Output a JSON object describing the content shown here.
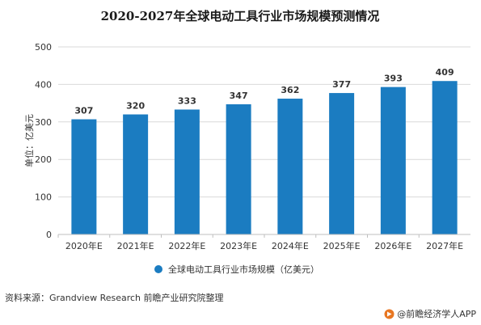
{
  "chart_data": {
    "type": "bar",
    "title": "2020-2027年全球电动工具行业市场规模预测情况",
    "categories": [
      "2020年E",
      "2021年E",
      "2022年E",
      "2023年E",
      "2024年E",
      "2025年E",
      "2026年E",
      "2027年E"
    ],
    "series": [
      {
        "name": "全球电动工具行业市场规模（亿美元）",
        "values": [
          307,
          320,
          333,
          347,
          362,
          377,
          393,
          409
        ]
      }
    ],
    "ylabel": "单位：亿美元",
    "xlabel": "",
    "ylim": [
      0,
      500
    ],
    "yticks": [
      0,
      100,
      200,
      300,
      400,
      500
    ],
    "grid": true,
    "legend_position": "bottom",
    "bar_color": "#1b7cc1",
    "grid_color": "#d9d9d9"
  },
  "footer": {
    "source": "资料来源：Grandview Research 前瞻产业研究院整理",
    "brand": "@前瞻经济学人APP"
  }
}
